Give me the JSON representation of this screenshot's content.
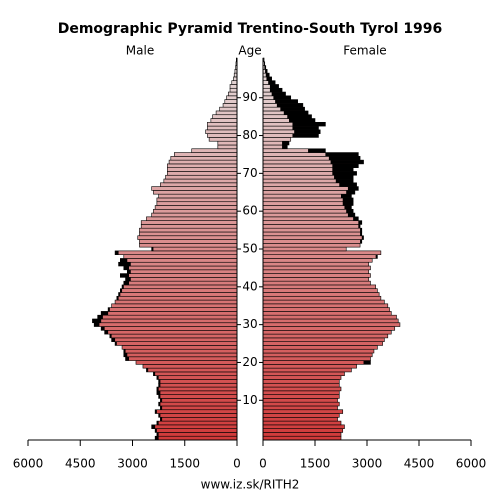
{
  "chart_data": {
    "type": "pyramid",
    "title": "Demographic Pyramid Trentino-South Tyrol 1996",
    "left_label": "Male",
    "axis_label": "Age",
    "right_label": "Female",
    "source": "www.iz.sk/RITH2",
    "ages": [
      0,
      1,
      2,
      3,
      4,
      5,
      6,
      7,
      8,
      9,
      10,
      11,
      12,
      13,
      14,
      15,
      16,
      17,
      18,
      19,
      20,
      21,
      22,
      23,
      24,
      25,
      26,
      27,
      28,
      29,
      30,
      31,
      32,
      33,
      34,
      35,
      36,
      37,
      38,
      39,
      40,
      41,
      42,
      43,
      44,
      45,
      46,
      47,
      48,
      49,
      50,
      51,
      52,
      53,
      54,
      55,
      56,
      57,
      58,
      59,
      60,
      61,
      62,
      63,
      64,
      65,
      66,
      67,
      68,
      69,
      70,
      71,
      72,
      73,
      74,
      75,
      76,
      77,
      78,
      79,
      80,
      81,
      82,
      83,
      84,
      85,
      86,
      87,
      88,
      89,
      90,
      91,
      92,
      93,
      94,
      95,
      96,
      97,
      98,
      99,
      100
    ],
    "ylim": [
      0,
      101
    ],
    "yticks": [
      10,
      20,
      30,
      40,
      50,
      60,
      70,
      80,
      90
    ],
    "xlim_left": [
      6000,
      0
    ],
    "xlim_right": [
      0,
      6000
    ],
    "xticks_left": [
      6000,
      4500,
      3000,
      1500,
      0
    ],
    "xticks_right": [
      0,
      1500,
      3000,
      4500,
      6000
    ],
    "series": [
      {
        "name": "Male",
        "side": "left",
        "values": [
          2350,
          2300,
          2350,
          2450,
          2300,
          2200,
          2250,
          2350,
          2200,
          2250,
          2200,
          2250,
          2300,
          2300,
          2250,
          2250,
          2300,
          2400,
          2600,
          2700,
          2900,
          3200,
          3250,
          3250,
          3300,
          3500,
          3600,
          3650,
          3800,
          3900,
          4100,
          4150,
          4000,
          3900,
          3700,
          3600,
          3500,
          3450,
          3400,
          3350,
          3300,
          3250,
          3200,
          3350,
          3150,
          3250,
          3400,
          3350,
          3250,
          3500,
          2450,
          2800,
          2800,
          2850,
          2800,
          2800,
          2750,
          2750,
          2600,
          2450,
          2400,
          2350,
          2300,
          2300,
          2250,
          2400,
          2450,
          2200,
          2100,
          2050,
          2000,
          2000,
          2000,
          1950,
          1900,
          1800,
          1300,
          550,
          550,
          800,
          850,
          900,
          850,
          850,
          750,
          700,
          600,
          500,
          400,
          350,
          300,
          250,
          200,
          200,
          150,
          100,
          80,
          60,
          40,
          30,
          20
        ]
      },
      {
        "name": "Female",
        "side": "right",
        "values": [
          2250,
          2250,
          2300,
          2350,
          2250,
          2150,
          2200,
          2300,
          2150,
          2200,
          2150,
          2200,
          2200,
          2250,
          2200,
          2200,
          2250,
          2350,
          2550,
          2700,
          3100,
          3100,
          3150,
          3200,
          3300,
          3450,
          3500,
          3600,
          3700,
          3800,
          3950,
          3900,
          3850,
          3700,
          3650,
          3600,
          3500,
          3400,
          3350,
          3300,
          3250,
          3100,
          3050,
          3100,
          3050,
          3100,
          3050,
          3150,
          3300,
          3400,
          2400,
          2800,
          2850,
          2900,
          2850,
          2850,
          2800,
          2850,
          2750,
          2650,
          2600,
          2550,
          2600,
          2600,
          2550,
          2650,
          2750,
          2700,
          2600,
          2600,
          2700,
          2600,
          2750,
          2900,
          2800,
          2750,
          1800,
          700,
          750,
          800,
          1600,
          1650,
          1600,
          1800,
          1500,
          1400,
          1300,
          1200,
          1150,
          1000,
          800,
          650,
          550,
          450,
          350,
          250,
          180,
          120,
          80,
          50,
          30
        ]
      }
    ]
  }
}
